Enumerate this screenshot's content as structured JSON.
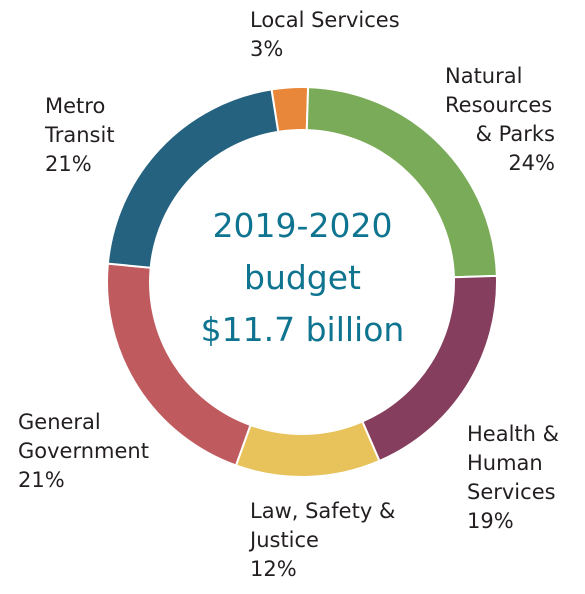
{
  "chart_data": {
    "type": "pie",
    "title": "2019-2020 budget $11.7 billion",
    "center_lines": [
      "2019-2020",
      "budget",
      "$11.7 billion"
    ],
    "slices": [
      {
        "label_lines": [
          "Local Services"
        ],
        "value_text": "3%",
        "value": 3,
        "color": "#e8863a"
      },
      {
        "label_lines": [
          "Natural",
          "Resources",
          "& Parks"
        ],
        "value_text": "24%",
        "value": 24,
        "color": "#7aab58"
      },
      {
        "label_lines": [
          "Health &",
          "Human",
          "Services"
        ],
        "value_text": "19%",
        "value": 19,
        "color": "#853e5d"
      },
      {
        "label_lines": [
          "Law, Safety &",
          "Justice"
        ],
        "value_text": "12%",
        "value": 12,
        "color": "#e8c25a"
      },
      {
        "label_lines": [
          "General",
          "Government"
        ],
        "value_text": "21%",
        "value": 21,
        "color": "#bf5b5e"
      },
      {
        "label_lines": [
          "Metro",
          "Transit"
        ],
        "value_text": "21%",
        "value": 21,
        "color": "#24627f"
      }
    ]
  }
}
